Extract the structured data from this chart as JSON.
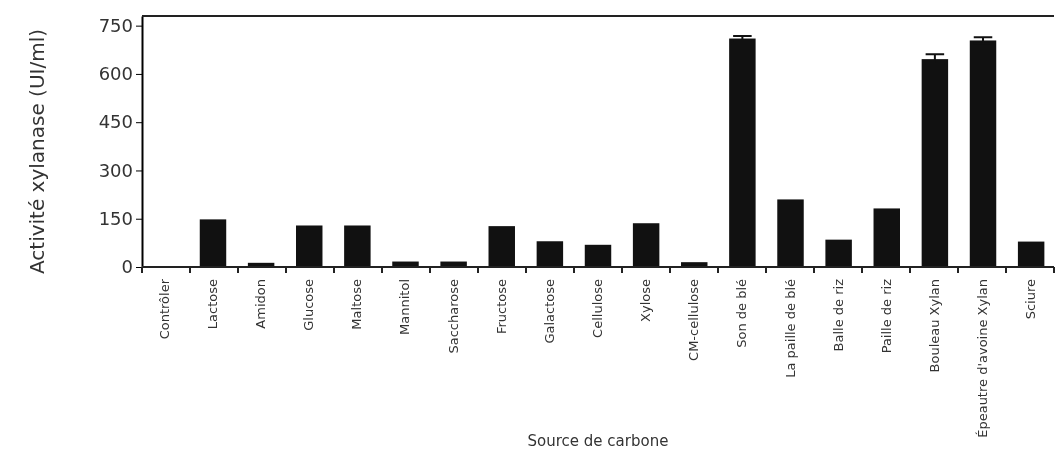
{
  "chart_data": {
    "type": "bar",
    "xlabel": "Source de carbone",
    "ylabel": "Activité xylanase (UI/ml)",
    "categories": [
      "Contrôler",
      "Lactose",
      "Amidon",
      "Glucose",
      "Maltose",
      "Mannitol",
      "Saccharose",
      "Fructose",
      "Galactose",
      "Cellulose",
      "Xylose",
      "CM-cellulose",
      "Son de blé",
      "La paille de blé",
      "Balle de riz",
      "Paille de riz",
      "Bouleau Xylan",
      "Épeautre d'avoine Xylan",
      "Sciure"
    ],
    "values": [
      0,
      148,
      13,
      129,
      129,
      17,
      17,
      127,
      80,
      69,
      136,
      15,
      710,
      210,
      85,
      182,
      646,
      704,
      79
    ],
    "errors": [
      null,
      null,
      null,
      null,
      null,
      null,
      null,
      null,
      null,
      null,
      null,
      null,
      8,
      null,
      null,
      null,
      15,
      10,
      null
    ],
    "color": "#111111",
    "ylim": [
      0,
      780
    ],
    "yticks": [
      0,
      150,
      300,
      450,
      600,
      750
    ],
    "grid": false
  }
}
